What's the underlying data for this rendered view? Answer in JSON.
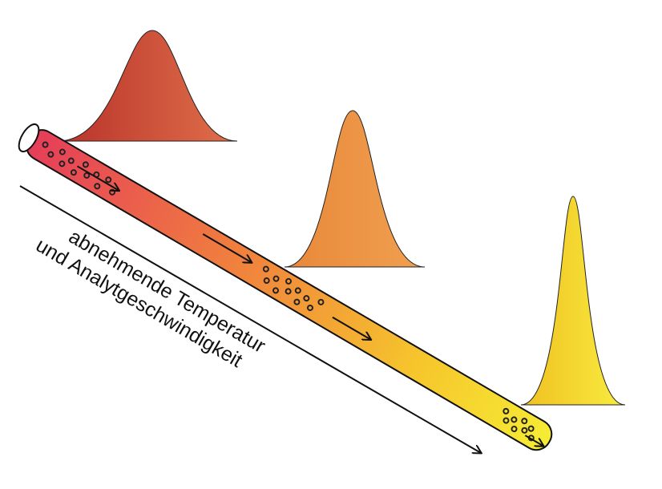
{
  "label": {
    "lines": [
      "abnehmende Temperatur",
      "und Analytgeschwindigkeit"
    ]
  }
}
